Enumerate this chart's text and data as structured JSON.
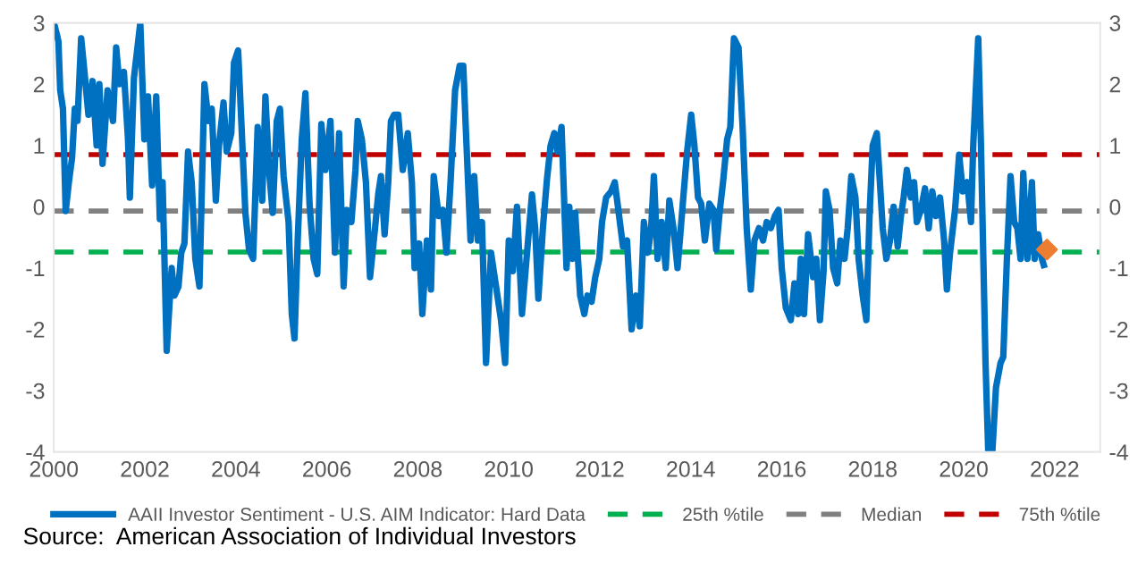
{
  "chart_data": {
    "type": "line",
    "x": [
      2000.0,
      2000.07,
      2000.1,
      2000.14,
      2000.2,
      2000.26,
      2000.33,
      2000.4,
      2000.46,
      2000.52,
      2000.6,
      2000.66,
      2000.76,
      2000.85,
      2000.94,
      2001.0,
      2001.07,
      2001.18,
      2001.3,
      2001.37,
      2001.44,
      2001.54,
      2001.63,
      2001.67,
      2001.76,
      2001.9,
      2001.99,
      2002.07,
      2002.16,
      2002.25,
      2002.33,
      2002.39,
      2002.48,
      2002.59,
      2002.65,
      2002.74,
      2002.8,
      2002.87,
      2002.95,
      2003.03,
      2003.11,
      2003.2,
      2003.31,
      2003.4,
      2003.47,
      2003.56,
      2003.63,
      2003.73,
      2003.8,
      2003.9,
      2003.96,
      2004.05,
      2004.12,
      2004.21,
      2004.29,
      2004.38,
      2004.48,
      2004.58,
      2004.65,
      2004.73,
      2004.81,
      2004.9,
      2004.97,
      2005.05,
      2005.16,
      2005.23,
      2005.29,
      2005.36,
      2005.45,
      2005.53,
      2005.62,
      2005.71,
      2005.79,
      2005.88,
      2005.97,
      2006.08,
      2006.18,
      2006.27,
      2006.37,
      2006.44,
      2006.54,
      2006.63,
      2006.68,
      2006.77,
      2006.86,
      2006.95,
      2007.06,
      2007.13,
      2007.19,
      2007.27,
      2007.35,
      2007.41,
      2007.48,
      2007.57,
      2007.67,
      2007.78,
      2007.87,
      2007.93,
      2008.03,
      2008.1,
      2008.2,
      2008.29,
      2008.35,
      2008.46,
      2008.55,
      2008.63,
      2008.72,
      2008.82,
      2008.92,
      2009.0,
      2009.06,
      2009.16,
      2009.24,
      2009.32,
      2009.41,
      2009.5,
      2009.61,
      2009.71,
      2009.83,
      2009.92,
      2010.0,
      2010.09,
      2010.18,
      2010.29,
      2010.39,
      2010.51,
      2010.58,
      2010.65,
      2010.75,
      2010.84,
      2010.92,
      2011.0,
      2011.07,
      2011.16,
      2011.27,
      2011.33,
      2011.4,
      2011.46,
      2011.57,
      2011.66,
      2011.73,
      2011.82,
      2011.9,
      2011.99,
      2012.05,
      2012.14,
      2012.25,
      2012.33,
      2012.4,
      2012.51,
      2012.6,
      2012.7,
      2012.8,
      2012.88,
      2012.97,
      2013.06,
      2013.13,
      2013.19,
      2013.27,
      2013.36,
      2013.45,
      2013.53,
      2013.62,
      2013.71,
      2013.82,
      2013.92,
      2014.01,
      2014.08,
      2014.16,
      2014.23,
      2014.31,
      2014.41,
      2014.5,
      2014.56,
      2014.64,
      2014.71,
      2014.8,
      2014.87,
      2014.95,
      2015.05,
      2015.14,
      2015.23,
      2015.32,
      2015.4,
      2015.5,
      2015.59,
      2015.67,
      2015.76,
      2015.85,
      2015.93,
      2016.0,
      2016.09,
      2016.2,
      2016.28,
      2016.36,
      2016.42,
      2016.49,
      2016.58,
      2016.69,
      2016.76,
      2016.84,
      2016.92,
      2016.97,
      2017.05,
      2017.13,
      2017.22,
      2017.29,
      2017.38,
      2017.45,
      2017.53,
      2017.62,
      2017.69,
      2017.78,
      2017.86,
      2017.93,
      2018.0,
      2018.09,
      2018.15,
      2018.22,
      2018.3,
      2018.38,
      2018.46,
      2018.55,
      2018.62,
      2018.68,
      2018.75,
      2018.84,
      2018.91,
      2018.97,
      2019.06,
      2019.15,
      2019.23,
      2019.31,
      2019.39,
      2019.48,
      2019.57,
      2019.63,
      2019.7,
      2019.81,
      2019.9,
      2019.98,
      2020.08,
      2020.16,
      2020.21,
      2020.32,
      2020.38,
      2020.48,
      2020.54,
      2020.63,
      2020.71,
      2020.81,
      2020.87,
      2020.95,
      2021.03,
      2021.11,
      2021.18,
      2021.25,
      2021.31,
      2021.4,
      2021.5,
      2021.56,
      2021.64,
      2021.72,
      2021.76
    ],
    "series": [
      {
        "name": "AAII Investor Sentiment - U.S. AIM Indicator: Hard Data",
        "color": "#0070c0",
        "values": [
          3.0,
          2.8,
          2.7,
          1.9,
          1.6,
          -0.07,
          0.4,
          0.8,
          1.6,
          1.4,
          2.75,
          2.3,
          1.5,
          2.05,
          1.0,
          2.0,
          0.7,
          1.9,
          1.4,
          2.6,
          2.0,
          2.2,
          1.1,
          0.15,
          2.1,
          3.0,
          1.1,
          1.8,
          0.35,
          1.8,
          -0.2,
          0.4,
          -2.35,
          -1.0,
          -1.45,
          -1.3,
          -0.75,
          -0.6,
          0.9,
          0.4,
          -0.85,
          -1.3,
          2.0,
          1.4,
          1.6,
          0.1,
          1.0,
          1.7,
          0.9,
          1.2,
          2.35,
          2.55,
          1.4,
          -0.1,
          -0.7,
          -0.85,
          1.3,
          0.1,
          1.8,
          0.6,
          -0.1,
          1.4,
          1.6,
          0.5,
          -0.25,
          -1.75,
          -2.15,
          -0.55,
          1.1,
          1.85,
          0.05,
          -0.85,
          -1.1,
          1.35,
          0.6,
          1.4,
          -0.75,
          1.2,
          -1.3,
          -0.05,
          -0.25,
          0.6,
          1.4,
          1.1,
          0.4,
          -1.15,
          -0.35,
          0.2,
          0.5,
          -0.45,
          0.4,
          1.4,
          1.5,
          1.5,
          0.6,
          1.2,
          0.4,
          -1.0,
          -0.6,
          -1.75,
          -0.55,
          -1.35,
          0.5,
          -0.15,
          -0.05,
          -0.75,
          0.4,
          1.9,
          2.3,
          2.3,
          1.2,
          -0.55,
          0.5,
          -0.55,
          -0.25,
          -2.55,
          -0.75,
          -1.25,
          -1.85,
          -2.55,
          -0.55,
          -1.05,
          0.0,
          -1.75,
          -0.85,
          0.2,
          -0.35,
          -1.5,
          -0.35,
          0.45,
          1.0,
          1.2,
          0.9,
          1.3,
          -1.0,
          0.0,
          -0.85,
          -0.1,
          -1.45,
          -1.75,
          -1.45,
          -1.55,
          -1.15,
          -0.85,
          -0.25,
          0.15,
          0.25,
          0.4,
          0.0,
          -0.65,
          -0.55,
          -2.0,
          -1.45,
          -1.95,
          -0.25,
          -0.75,
          -0.35,
          0.5,
          -0.85,
          -0.25,
          -1.0,
          0.1,
          -0.35,
          -1.0,
          0.0,
          0.9,
          1.5,
          1.0,
          0.15,
          0.05,
          -0.55,
          0.05,
          -0.05,
          -0.7,
          -0.05,
          0.4,
          1.1,
          1.3,
          2.75,
          2.6,
          1.3,
          -0.35,
          -1.35,
          -0.55,
          -0.35,
          -0.55,
          -0.25,
          -0.35,
          -0.15,
          -0.05,
          -1.0,
          -1.65,
          -1.85,
          -1.25,
          -1.75,
          -0.85,
          -1.75,
          -0.45,
          -1.15,
          -0.85,
          -1.85,
          -1.05,
          0.25,
          -0.05,
          -1.0,
          -1.25,
          -0.55,
          -0.85,
          -0.35,
          0.5,
          0.15,
          -0.85,
          -1.45,
          -1.85,
          -0.15,
          1.0,
          1.2,
          0.5,
          -0.35,
          -0.85,
          -0.55,
          0.0,
          -0.65,
          -0.15,
          0.15,
          0.6,
          0.15,
          0.4,
          -0.25,
          -0.05,
          0.3,
          -0.35,
          0.25,
          -0.15,
          0.15,
          -0.55,
          -1.35,
          -0.75,
          -0.05,
          0.85,
          0.25,
          0.4,
          -0.25,
          1.0,
          2.75,
          1.0,
          -2.55,
          -4.0,
          -4.0,
          -2.95,
          -2.55,
          -2.45,
          -0.85,
          0.5,
          -0.25,
          -0.35,
          -0.85,
          0.55,
          -0.85,
          0.4,
          -0.85,
          -0.45,
          -0.85,
          -0.95
        ]
      },
      {
        "color": "#ed7d31",
        "type": "scatter",
        "marker": "diamond",
        "x": [
          2021.83
        ],
        "values": [
          -0.7
        ]
      }
    ],
    "ref_lines": [
      {
        "axis": "y",
        "value": -0.74,
        "label": "25th %tile",
        "color": "#00b050",
        "line_style": "dashed"
      },
      {
        "axis": "y",
        "value": -0.07,
        "label": "Median",
        "color": "#808080",
        "line_style": "dashed"
      },
      {
        "axis": "y",
        "value": 0.85,
        "label": "75th %tile",
        "color": "#c00000",
        "line_style": "dashed"
      }
    ],
    "xlim": [
      2000,
      2023
    ],
    "xticks": [
      2000,
      2002,
      2004,
      2006,
      2008,
      2010,
      2012,
      2014,
      2016,
      2018,
      2020,
      2022
    ],
    "ylim": [
      -4,
      3
    ],
    "yticks": [
      -4,
      -3,
      -2,
      -1,
      0,
      1,
      2,
      3
    ],
    "y2lim": [
      -4,
      3
    ],
    "y2ticks": [
      -4,
      -3,
      -2,
      -1,
      0,
      1,
      2,
      3
    ],
    "grid": false,
    "legend": "bottom",
    "marker": "none",
    "line_style": "solid",
    "annotations": [
      "Source:  American Association of Individual Investors"
    ]
  }
}
